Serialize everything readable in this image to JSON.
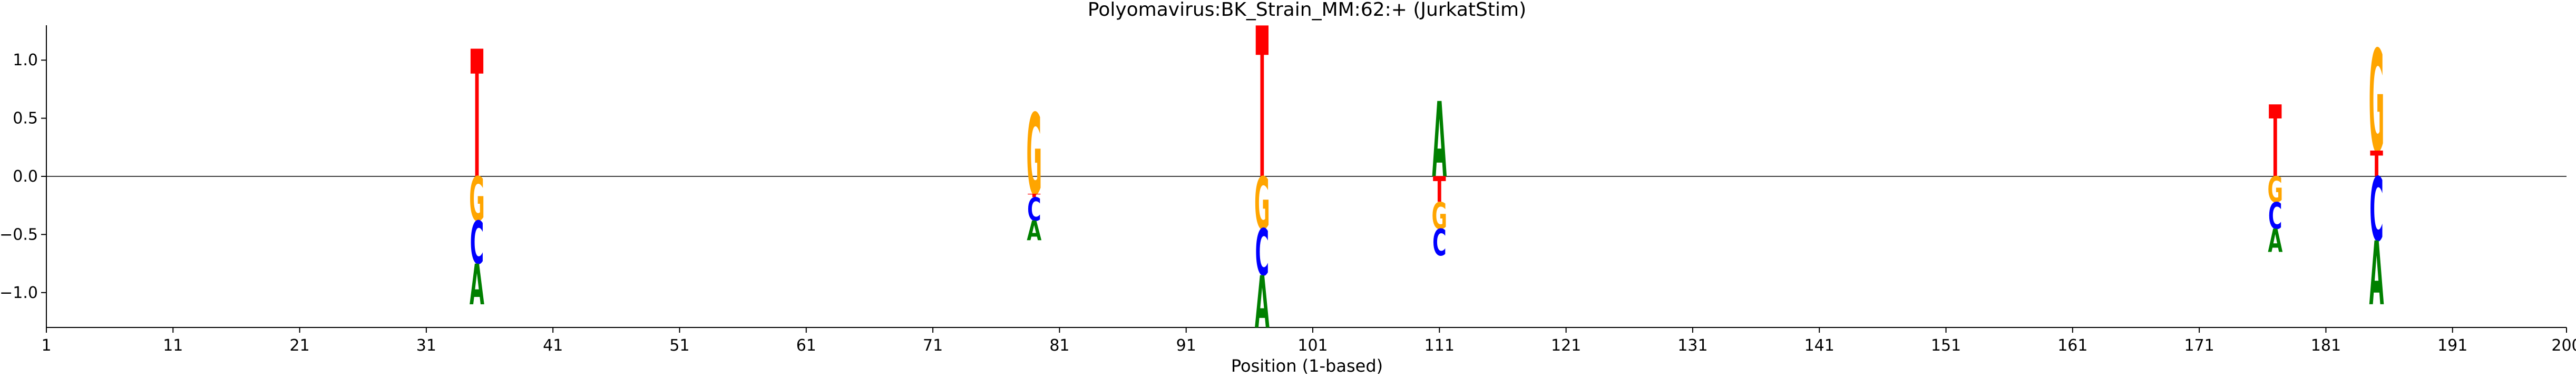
{
  "chart_data": {
    "type": "sequence-logo",
    "title": "Polyomavirus:BK_Strain_MM:62:+  (JurkatStim)",
    "xlabel": "Position (1-based)",
    "ylabel": "",
    "xlim": [
      1,
      200
    ],
    "ylim": [
      -1.3,
      1.3
    ],
    "x_ticks": [
      1,
      11,
      21,
      31,
      41,
      51,
      61,
      71,
      81,
      91,
      101,
      111,
      121,
      131,
      141,
      151,
      161,
      171,
      181,
      191,
      200
    ],
    "y_ticks": [
      -1.0,
      -0.5,
      0.0,
      0.5,
      1.0
    ],
    "y_tick_labels": [
      "−1.0",
      "−0.5",
      "0.0",
      "0.5",
      "1.0"
    ],
    "baseline": 0,
    "colors": {
      "A": "#008000",
      "C": "#0000ff",
      "G": "#ffa500",
      "T": "#ff0000"
    },
    "positions": [
      {
        "x": 35,
        "letters": [
          {
            "base": "T",
            "from": 0.0,
            "to": 1.1
          },
          {
            "base": "G",
            "from": -0.38,
            "to": 0.0
          },
          {
            "base": "C",
            "from": -0.75,
            "to": -0.38
          },
          {
            "base": "A",
            "from": -1.1,
            "to": -0.75
          }
        ]
      },
      {
        "x": 79,
        "letters": [
          {
            "base": "G",
            "from": -0.15,
            "to": 0.55
          },
          {
            "base": "T",
            "from": -0.18,
            "to": -0.15
          },
          {
            "base": "C",
            "from": -0.38,
            "to": -0.18
          },
          {
            "base": "A",
            "from": -0.55,
            "to": -0.38
          }
        ]
      },
      {
        "x": 97,
        "letters": [
          {
            "base": "T",
            "from": 0.0,
            "to": 1.3
          },
          {
            "base": "G",
            "from": -0.45,
            "to": 0.0
          },
          {
            "base": "C",
            "from": -0.85,
            "to": -0.45
          },
          {
            "base": "A",
            "from": -1.3,
            "to": -0.85
          }
        ]
      },
      {
        "x": 111,
        "letters": [
          {
            "base": "A",
            "from": 0.0,
            "to": 0.65
          },
          {
            "base": "T",
            "from": -0.22,
            "to": 0.0
          },
          {
            "base": "G",
            "from": -0.45,
            "to": -0.22
          },
          {
            "base": "C",
            "from": -0.68,
            "to": -0.45
          }
        ]
      },
      {
        "x": 177,
        "letters": [
          {
            "base": "T",
            "from": 0.0,
            "to": 0.62
          },
          {
            "base": "G",
            "from": -0.22,
            "to": 0.0
          },
          {
            "base": "C",
            "from": -0.45,
            "to": -0.22
          },
          {
            "base": "A",
            "from": -0.65,
            "to": -0.45
          }
        ]
      },
      {
        "x": 185,
        "letters": [
          {
            "base": "G",
            "from": 0.22,
            "to": 1.1
          },
          {
            "base": "T",
            "from": 0.0,
            "to": 0.22
          },
          {
            "base": "C",
            "from": -0.55,
            "to": 0.0
          },
          {
            "base": "A",
            "from": -1.1,
            "to": -0.55
          }
        ]
      }
    ]
  }
}
